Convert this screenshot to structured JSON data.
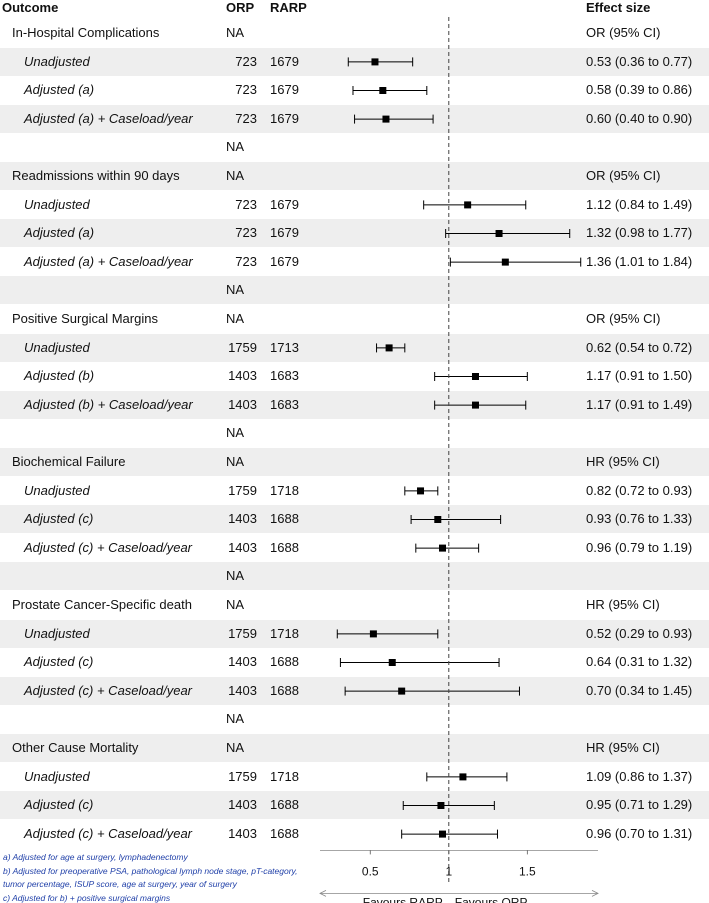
{
  "headers": {
    "outcome": "Outcome",
    "orp": "ORP",
    "rarp": "RARP",
    "effect": "Effect size"
  },
  "chart_data": {
    "type": "forest",
    "xlim": [
      0.18,
      1.95
    ],
    "reference_line": 1,
    "x_ticks": [
      0.5,
      1,
      1.5
    ],
    "x_tick_labels": [
      "0.5",
      "1",
      "1.5"
    ],
    "favours_left": "Favours RARP",
    "favours_right": "Favours ORP",
    "rows": [
      {
        "label": "In-Hospital Complications",
        "kind": "group",
        "orp": "NA",
        "rarp": "",
        "effect": "OR (95% CI)"
      },
      {
        "label": "Unadjusted",
        "kind": "sub",
        "orp": "723",
        "rarp": "1679",
        "effect": "0.53 (0.36 to 0.77)",
        "est": 0.53,
        "lo": 0.36,
        "hi": 0.77
      },
      {
        "label": "Adjusted (a)",
        "kind": "sub",
        "orp": "723",
        "rarp": "1679",
        "effect": "0.58 (0.39 to 0.86)",
        "est": 0.58,
        "lo": 0.39,
        "hi": 0.86
      },
      {
        "label": "Adjusted (a) + Caseload/year",
        "kind": "sub",
        "orp": "723",
        "rarp": "1679",
        "effect": "0.60 (0.40 to 0.90)",
        "est": 0.6,
        "lo": 0.4,
        "hi": 0.9
      },
      {
        "label": "",
        "kind": "spacer",
        "orp": "NA",
        "rarp": "",
        "effect": ""
      },
      {
        "label": "Readmissions within 90 days",
        "kind": "group",
        "orp": "NA",
        "rarp": "",
        "effect": "OR (95% CI)"
      },
      {
        "label": "Unadjusted",
        "kind": "sub",
        "orp": "723",
        "rarp": "1679",
        "effect": "1.12 (0.84 to 1.49)",
        "est": 1.12,
        "lo": 0.84,
        "hi": 1.49
      },
      {
        "label": "Adjusted (a)",
        "kind": "sub",
        "orp": "723",
        "rarp": "1679",
        "effect": "1.32 (0.98 to 1.77)",
        "est": 1.32,
        "lo": 0.98,
        "hi": 1.77
      },
      {
        "label": "Adjusted (a) + Caseload/year",
        "kind": "sub",
        "orp": "723",
        "rarp": "1679",
        "effect": "1.36 (1.01 to 1.84)",
        "est": 1.36,
        "lo": 1.01,
        "hi": 1.84
      },
      {
        "label": "",
        "kind": "spacer",
        "orp": "NA",
        "rarp": "",
        "effect": ""
      },
      {
        "label": "Positive Surgical Margins",
        "kind": "group",
        "orp": "NA",
        "rarp": "",
        "effect": "OR (95% CI)"
      },
      {
        "label": "Unadjusted",
        "kind": "sub",
        "orp": "1759",
        "rarp": "1713",
        "effect": "0.62 (0.54 to 0.72)",
        "est": 0.62,
        "lo": 0.54,
        "hi": 0.72
      },
      {
        "label": "Adjusted (b)",
        "kind": "sub",
        "orp": "1403",
        "rarp": "1683",
        "effect": "1.17 (0.91 to 1.50)",
        "est": 1.17,
        "lo": 0.91,
        "hi": 1.5
      },
      {
        "label": "Adjusted (b) + Caseload/year",
        "kind": "sub",
        "orp": "1403",
        "rarp": "1683",
        "effect": "1.17 (0.91 to 1.49)",
        "est": 1.17,
        "lo": 0.91,
        "hi": 1.49
      },
      {
        "label": "",
        "kind": "spacer",
        "orp": "NA",
        "rarp": "",
        "effect": ""
      },
      {
        "label": "Biochemical Failure",
        "kind": "group",
        "orp": "NA",
        "rarp": "",
        "effect": "HR (95% CI)"
      },
      {
        "label": "Unadjusted",
        "kind": "sub",
        "orp": "1759",
        "rarp": "1718",
        "effect": "0.82 (0.72 to 0.93)",
        "est": 0.82,
        "lo": 0.72,
        "hi": 0.93
      },
      {
        "label": "Adjusted (c)",
        "kind": "sub",
        "orp": "1403",
        "rarp": "1688",
        "effect": "0.93 (0.76 to 1.33)",
        "est": 0.93,
        "lo": 0.76,
        "hi": 1.33
      },
      {
        "label": "Adjusted (c) + Caseload/year",
        "kind": "sub",
        "orp": "1403",
        "rarp": "1688",
        "effect": "0.96 (0.79 to 1.19)",
        "est": 0.96,
        "lo": 0.79,
        "hi": 1.19
      },
      {
        "label": "",
        "kind": "spacer",
        "orp": "NA",
        "rarp": "",
        "effect": ""
      },
      {
        "label": "Prostate Cancer-Specific death",
        "kind": "group",
        "orp": "NA",
        "rarp": "",
        "effect": "HR (95% CI)"
      },
      {
        "label": "Unadjusted",
        "kind": "sub",
        "orp": "1759",
        "rarp": "1718",
        "effect": "0.52 (0.29 to 0.93)",
        "est": 0.52,
        "lo": 0.29,
        "hi": 0.93
      },
      {
        "label": "Adjusted (c)",
        "kind": "sub",
        "orp": "1403",
        "rarp": "1688",
        "effect": "0.64 (0.31 to 1.32)",
        "est": 0.64,
        "lo": 0.31,
        "hi": 1.32
      },
      {
        "label": "Adjusted (c) + Caseload/year",
        "kind": "sub",
        "orp": "1403",
        "rarp": "1688",
        "effect": "0.70 (0.34 to 1.45)",
        "est": 0.7,
        "lo": 0.34,
        "hi": 1.45
      },
      {
        "label": "",
        "kind": "spacer",
        "orp": "NA",
        "rarp": "",
        "effect": ""
      },
      {
        "label": "Other Cause Mortality",
        "kind": "group",
        "orp": "NA",
        "rarp": "",
        "effect": "HR (95% CI)"
      },
      {
        "label": "Unadjusted",
        "kind": "sub",
        "orp": "1759",
        "rarp": "1718",
        "effect": "1.09 (0.86 to 1.37)",
        "est": 1.09,
        "lo": 0.86,
        "hi": 1.37
      },
      {
        "label": "Adjusted (c)",
        "kind": "sub",
        "orp": "1403",
        "rarp": "1688",
        "effect": "0.95 (0.71 to 1.29)",
        "est": 0.95,
        "lo": 0.71,
        "hi": 1.29
      },
      {
        "label": "Adjusted (c) + Caseload/year",
        "kind": "sub",
        "orp": "1403",
        "rarp": "1688",
        "effect": "0.96 (0.70 to 1.31)",
        "est": 0.96,
        "lo": 0.7,
        "hi": 1.31
      }
    ]
  },
  "footnotes": [
    "a) Adjusted for age at surgery, lymphadenectomy",
    "b) Adjusted for preoperative PSA, pathological lymph node stage, pT-category,",
    "tumor percentage, ISUP score, age at surgery, year of surgery",
    "c) Adjusted for b) + positive surgical margins"
  ],
  "colors": {
    "row_shade": "#eeeeee",
    "footnote": "#1f3fa8",
    "marker": "#000000"
  }
}
